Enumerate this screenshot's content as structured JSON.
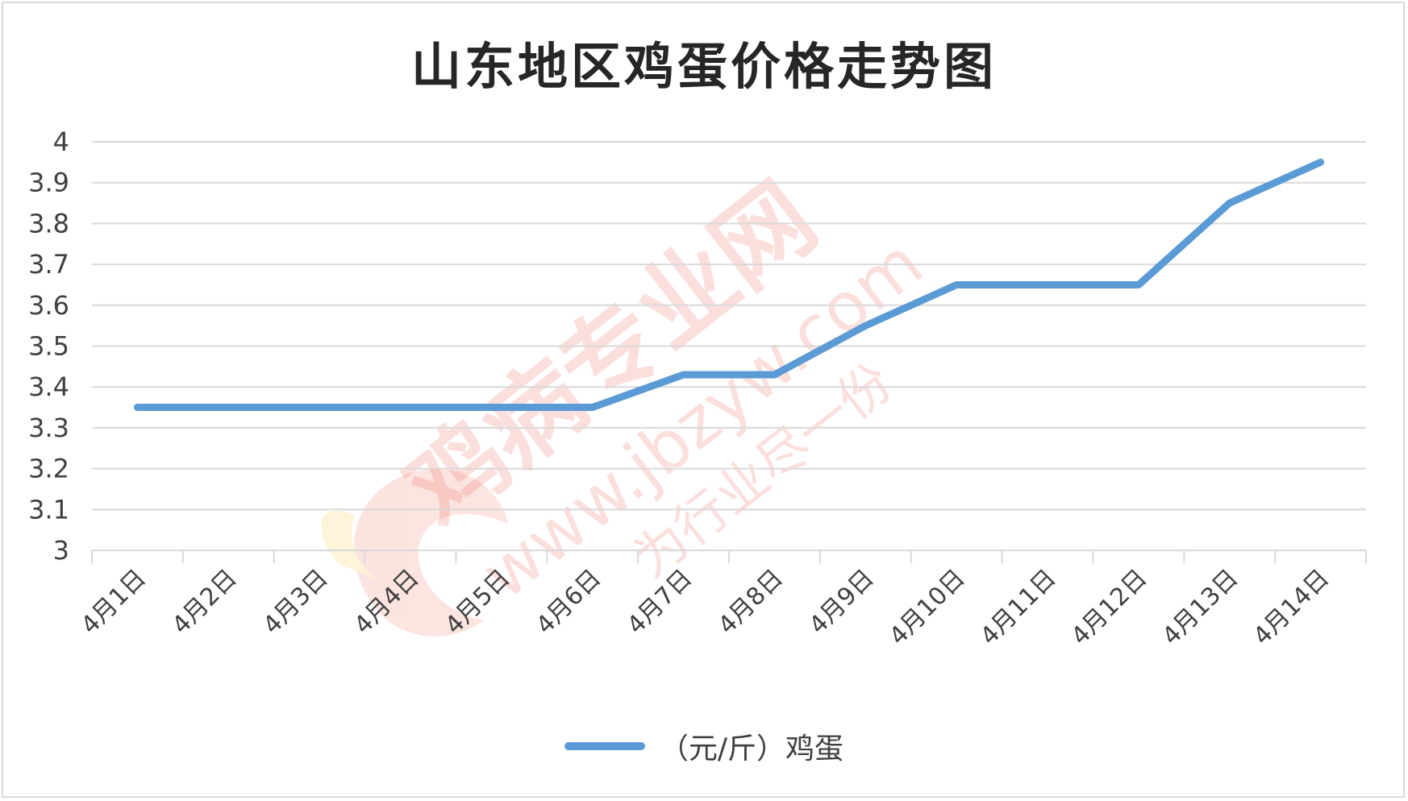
{
  "chart_data": {
    "type": "line",
    "title": "山东地区鸡蛋价格走势图",
    "categories": [
      "4月1日",
      "4月2日",
      "4月3日",
      "4月4日",
      "4月5日",
      "4月6日",
      "4月7日",
      "4月8日",
      "4月9日",
      "4月10日",
      "4月11日",
      "4月12日",
      "4月13日",
      "4月14日"
    ],
    "series": [
      {
        "name": "（元/斤）鸡蛋",
        "values": [
          3.35,
          3.35,
          3.35,
          3.35,
          3.35,
          3.35,
          3.43,
          3.43,
          3.55,
          3.65,
          3.65,
          3.65,
          3.85,
          3.95
        ],
        "color": "#5b9bd5"
      }
    ],
    "ylim": [
      3,
      4
    ],
    "yticks": [
      "3",
      "3.1",
      "3.2",
      "3.3",
      "3.4",
      "3.5",
      "3.6",
      "3.7",
      "3.8",
      "3.9",
      "4"
    ],
    "xlabel": "",
    "ylabel": "",
    "grid": true,
    "legend_position": "bottom"
  },
  "watermark": {
    "brand": "鸡病专业网",
    "url": "www.jbzyw.com",
    "slogan": "为行业尽一份"
  }
}
